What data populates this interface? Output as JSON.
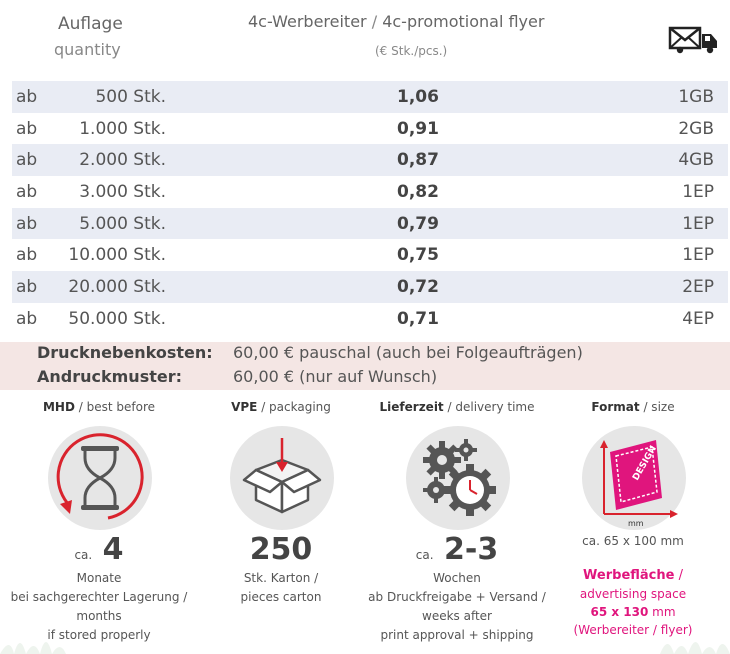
{
  "header": {
    "quantity_de": "Auflage",
    "quantity_en": "quantity",
    "title_de": "4c-Werbereiter",
    "title_sep": " / ",
    "title_en": "4c-promotional flyer",
    "subtitle": "(€ Stk./pcs.)",
    "shipping_icon": "envelope-truck-icon"
  },
  "prices": [
    {
      "prefix": "ab",
      "quantity": "500 Stk.",
      "price": "1,06",
      "code": "1GB"
    },
    {
      "prefix": "ab",
      "quantity": "1.000 Stk.",
      "price": "0,91",
      "code": "2GB"
    },
    {
      "prefix": "ab",
      "quantity": "2.000 Stk.",
      "price": "0,87",
      "code": "4GB"
    },
    {
      "prefix": "ab",
      "quantity": "3.000 Stk.",
      "price": "0,82",
      "code": "1EP"
    },
    {
      "prefix": "ab",
      "quantity": "5.000 Stk.",
      "price": "0,79",
      "code": "1EP"
    },
    {
      "prefix": "ab",
      "quantity": "10.000 Stk.",
      "price": "0,75",
      "code": "1EP"
    },
    {
      "prefix": "ab",
      "quantity": "20.000 Stk.",
      "price": "0,72",
      "code": "2EP"
    },
    {
      "prefix": "ab",
      "quantity": "50.000 Stk.",
      "price": "0,71",
      "code": "4EP"
    }
  ],
  "extras": [
    {
      "label": "Drucknebenkosten:",
      "value": "60,00 € pauschal (auch bei Folgeaufträgen)"
    },
    {
      "label": "Andruckmuster:",
      "value": "60,00 € (nur auf Wunsch)"
    }
  ],
  "features": {
    "mhd": {
      "title_de": "MHD",
      "title_en": "/ best before",
      "ca": "ca.",
      "value": "4",
      "unit": "Monate",
      "line1": "bei sachgerechter Lagerung /",
      "line2": "months",
      "line3": "if stored properly",
      "icon": "hourglass-icon"
    },
    "vpe": {
      "title_de": "VPE",
      "title_en": "/ packaging",
      "value": "250",
      "line1": "Stk. Karton /",
      "line2": "pieces carton",
      "icon": "box-icon"
    },
    "delivery": {
      "title_de": "Lieferzeit",
      "title_en": "/ delivery time",
      "ca": "ca.",
      "value": "2-3",
      "unit": "Wochen",
      "line1": "ab Druckfreigabe + Versand /",
      "line2": "weeks after",
      "line3": "print approval + shipping",
      "icon": "gears-clock-icon"
    },
    "format": {
      "title_de": "Format",
      "title_en": "/ size",
      "icon_text": "DESIGN",
      "icon_unit": "mm",
      "size": "ca. 65 x 100 mm",
      "adv_de": "Werbefläche",
      "adv_sep": " /",
      "adv_en": "advertising space",
      "adv_size": "65 x 130",
      "adv_unit": " mm",
      "adv_note": "(Werbereiter / flyer)",
      "icon": "format-design-icon"
    }
  },
  "colors": {
    "row_shade": "#e9ecf4",
    "extras_bg": "#f4e6e4",
    "accent_pink": "#e0157d",
    "accent_red": "#d9232d"
  }
}
